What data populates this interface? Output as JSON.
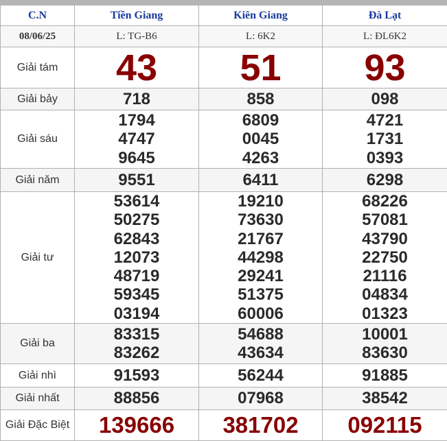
{
  "header": {
    "day": "C.N",
    "provinces": [
      "Tiền Giang",
      "Kiên Giang",
      "Đà Lạt"
    ]
  },
  "date_row": {
    "date": "08/06/25",
    "tickets": [
      "L: TG-B6",
      "L: 6K2",
      "L: ĐL6K2"
    ]
  },
  "prizes": [
    {
      "label": "Giải tám",
      "style": "big",
      "values": [
        [
          "43"
        ],
        [
          "51"
        ],
        [
          "93"
        ]
      ]
    },
    {
      "label": "Giải bảy",
      "style": "num",
      "values": [
        [
          "718"
        ],
        [
          "858"
        ],
        [
          "098"
        ]
      ]
    },
    {
      "label": "Giải sáu",
      "style": "num",
      "values": [
        [
          "1794",
          "4747",
          "9645"
        ],
        [
          "6809",
          "0045",
          "4263"
        ],
        [
          "4721",
          "1731",
          "0393"
        ]
      ]
    },
    {
      "label": "Giải năm",
      "style": "num",
      "values": [
        [
          "9551"
        ],
        [
          "6411"
        ],
        [
          "6298"
        ]
      ]
    },
    {
      "label": "Giải tư",
      "style": "num",
      "values": [
        [
          "53614",
          "50275",
          "62843",
          "12073",
          "48719",
          "59345",
          "03194"
        ],
        [
          "19210",
          "73630",
          "21767",
          "44298",
          "29241",
          "51375",
          "60006"
        ],
        [
          "68226",
          "57081",
          "43790",
          "22750",
          "21116",
          "04834",
          "01323"
        ]
      ]
    },
    {
      "label": "Giải ba",
      "style": "num",
      "values": [
        [
          "83315",
          "83262"
        ],
        [
          "54688",
          "43634"
        ],
        [
          "10001",
          "83630"
        ]
      ]
    },
    {
      "label": "Giải nhì",
      "style": "num",
      "values": [
        [
          "91593"
        ],
        [
          "56244"
        ],
        [
          "91885"
        ]
      ]
    },
    {
      "label": "Giải nhất",
      "style": "num",
      "values": [
        [
          "88856"
        ],
        [
          "07968"
        ],
        [
          "38542"
        ]
      ]
    },
    {
      "label": "Giải Đặc Biệt",
      "style": "db",
      "values": [
        [
          "139666"
        ],
        [
          "381702"
        ],
        [
          "092115"
        ]
      ]
    }
  ],
  "colors": {
    "header_text": "#1a3a9c",
    "highlight": "#880000",
    "alt_row": "#f5f5f5"
  }
}
